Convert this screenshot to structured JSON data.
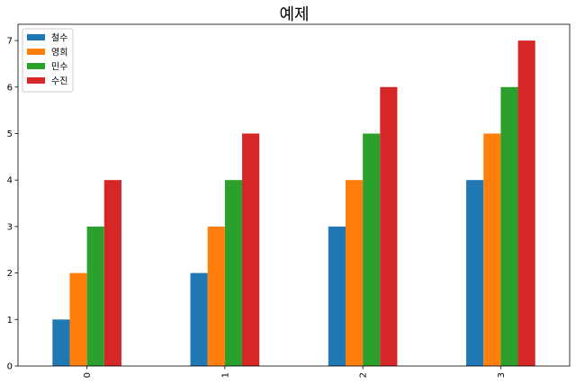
{
  "chart_data": {
    "type": "bar",
    "title": "예제",
    "xlabel": "",
    "ylabel": "",
    "categories": [
      "0",
      "1",
      "2",
      "3"
    ],
    "x_tick_rotation": "vertical",
    "ylim": [
      0,
      7.35
    ],
    "y_ticks": [
      "0",
      "1",
      "2",
      "3",
      "4",
      "5",
      "6",
      "7"
    ],
    "grid": false,
    "legend_position": "top-left",
    "series": [
      {
        "name": "철수",
        "values": [
          1,
          2,
          3,
          4
        ],
        "color": "#1f77b4"
      },
      {
        "name": "영희",
        "values": [
          2,
          3,
          4,
          5
        ],
        "color": "#ff7f0e"
      },
      {
        "name": "민수",
        "values": [
          3,
          4,
          5,
          6
        ],
        "color": "#2ca02c"
      },
      {
        "name": "수진",
        "values": [
          4,
          5,
          6,
          7
        ],
        "color": "#d62728"
      }
    ]
  }
}
